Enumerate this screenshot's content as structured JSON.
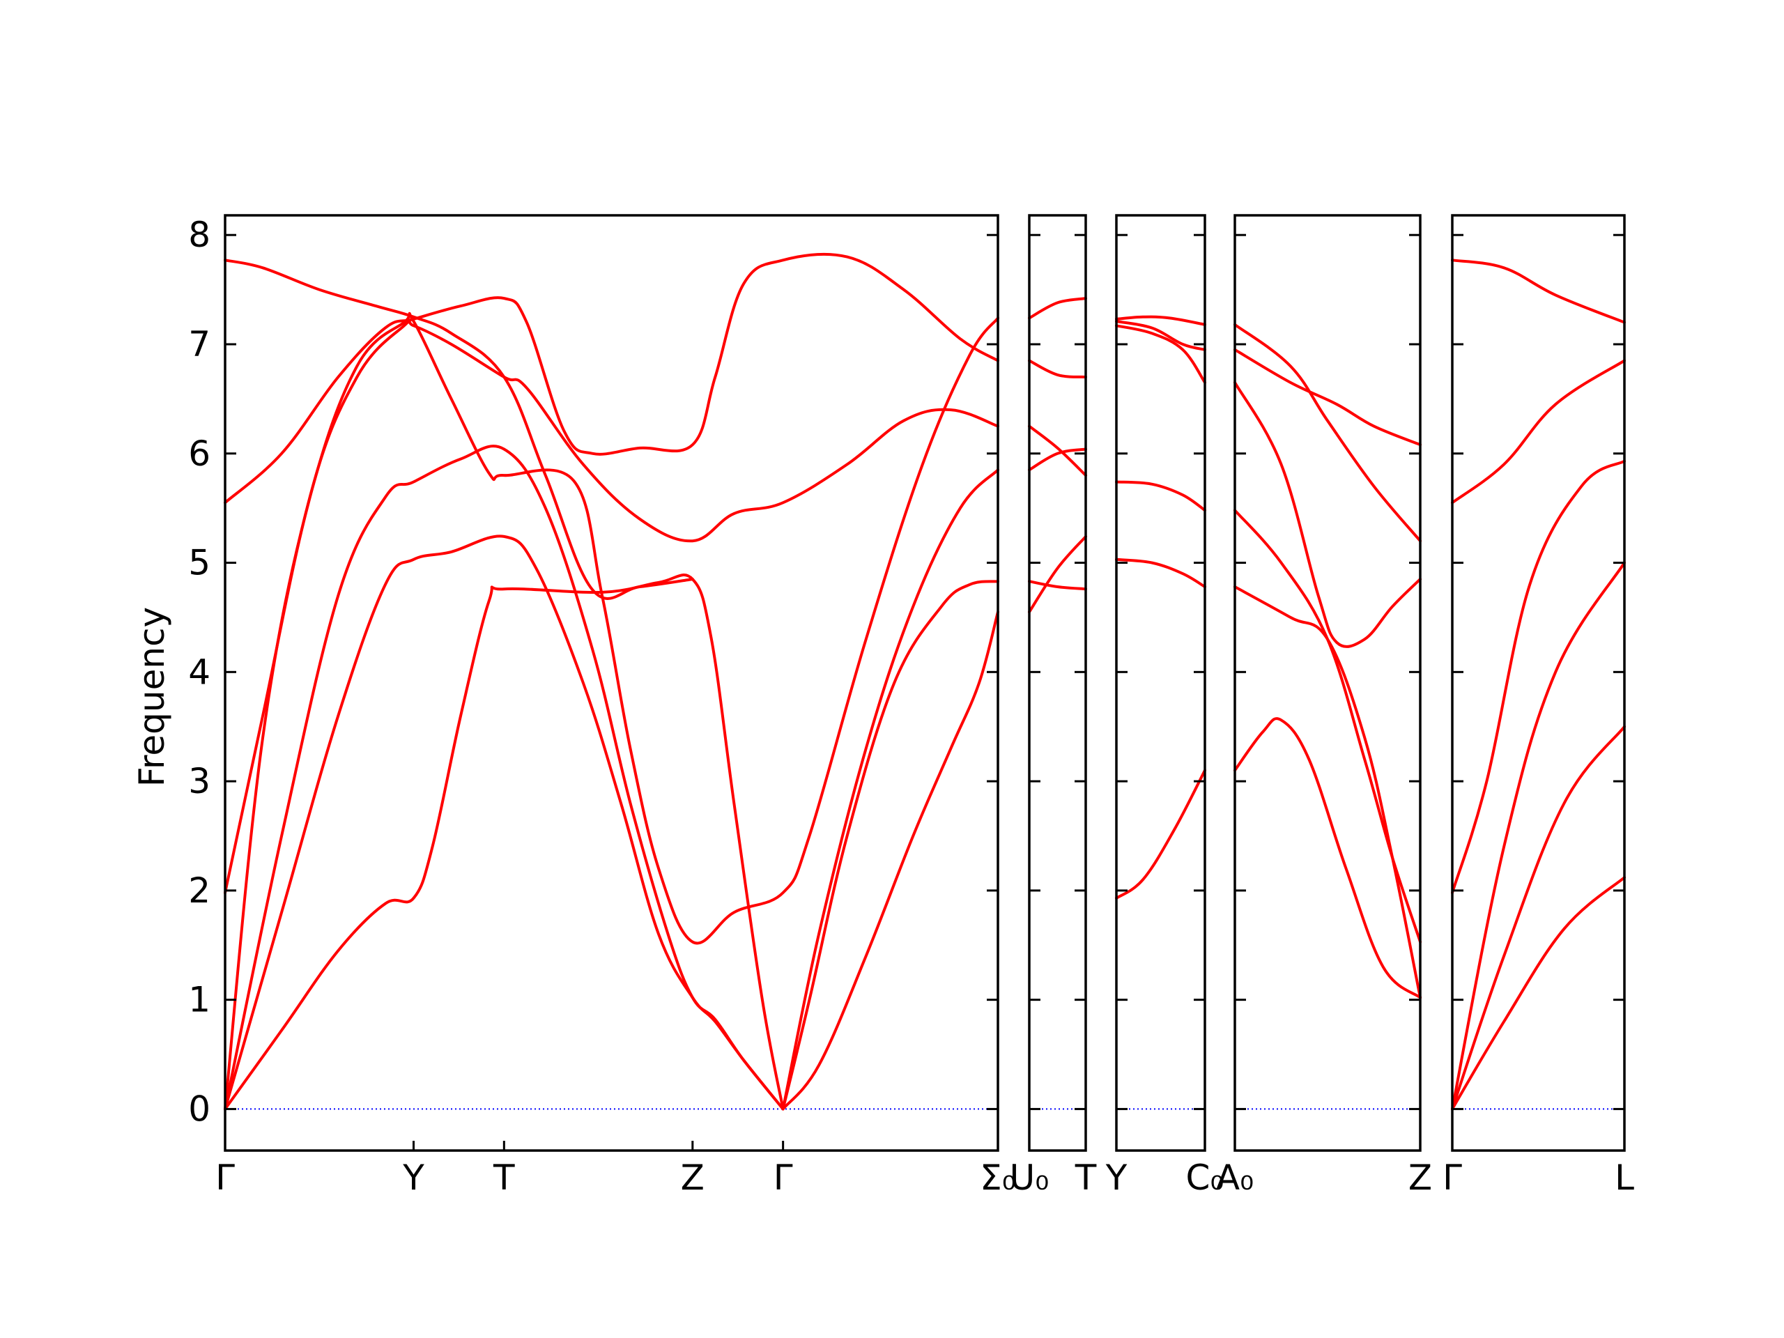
{
  "chart_data": {
    "type": "line",
    "ylabel": "Frequency",
    "ylim": [
      -0.38,
      8.18
    ],
    "yticks": [
      0,
      1,
      2,
      3,
      4,
      5,
      6,
      7,
      8
    ],
    "colors": {
      "bands": "#ff0000",
      "zero_line": "#0000ff",
      "axes": "#000000"
    },
    "grid": false,
    "panels": [
      {
        "name": "Γ-Y-T-Z-Γ-Σ0",
        "xlim": [
          0,
          4.1
        ],
        "xticks": [
          {
            "x": 0,
            "label": "Γ"
          },
          {
            "x": 1.0,
            "label": "Y"
          },
          {
            "x": 1.48,
            "label": "T"
          },
          {
            "x": 2.48,
            "label": "Z"
          },
          {
            "x": 2.96,
            "label": "Γ"
          },
          {
            "x": 4.1,
            "label": "Σ₀"
          }
        ],
        "bands": [
          [
            [
              0,
              0
            ],
            [
              0.3,
              0.72
            ],
            [
              0.6,
              1.45
            ],
            [
              0.85,
              1.88
            ],
            [
              1.0,
              1.93
            ],
            [
              1.1,
              2.4
            ],
            [
              1.25,
              3.6
            ],
            [
              1.4,
              4.65
            ],
            [
              1.48,
              4.76
            ],
            [
              2.0,
              4.73
            ],
            [
              2.3,
              4.82
            ],
            [
              2.48,
              4.85
            ],
            [
              2.58,
              4.3
            ],
            [
              2.7,
              2.8
            ],
            [
              2.85,
              1.0
            ],
            [
              2.96,
              0
            ]
          ],
          [
            [
              0,
              0
            ],
            [
              0.3,
              1.8
            ],
            [
              0.6,
              3.6
            ],
            [
              0.85,
              4.8
            ],
            [
              1.0,
              5.03
            ],
            [
              1.2,
              5.1
            ],
            [
              1.48,
              5.24
            ],
            [
              1.65,
              4.95
            ],
            [
              1.9,
              3.9
            ],
            [
              2.1,
              2.8
            ],
            [
              2.3,
              1.6
            ],
            [
              2.48,
              1.02
            ],
            [
              2.6,
              0.8
            ],
            [
              2.75,
              0.45
            ],
            [
              2.96,
              0
            ]
          ],
          [
            [
              0,
              0
            ],
            [
              0.3,
              2.5
            ],
            [
              0.6,
              4.7
            ],
            [
              0.85,
              5.6
            ],
            [
              1.0,
              5.74
            ],
            [
              1.25,
              5.95
            ],
            [
              1.48,
              6.04
            ],
            [
              1.7,
              5.5
            ],
            [
              1.95,
              4.2
            ],
            [
              2.15,
              2.8
            ],
            [
              2.35,
              1.6
            ],
            [
              2.48,
              1.02
            ],
            [
              2.6,
              0.82
            ],
            [
              2.75,
              0.45
            ],
            [
              2.96,
              0
            ]
          ],
          [
            [
              0,
              1.98
            ],
            [
              0.2,
              3.6
            ],
            [
              0.45,
              5.6
            ],
            [
              0.7,
              6.8
            ],
            [
              0.95,
              7.2
            ],
            [
              1.0,
              7.21
            ],
            [
              1.2,
              6.5
            ],
            [
              1.4,
              5.82
            ],
            [
              1.48,
              5.8
            ],
            [
              1.85,
              5.75
            ],
            [
              2.0,
              4.7
            ],
            [
              2.15,
              3.3
            ],
            [
              2.3,
              2.2
            ],
            [
              2.48,
              1.53
            ],
            [
              2.7,
              1.8
            ],
            [
              2.96,
              1.98
            ],
            [
              3.1,
              2.5
            ],
            [
              3.4,
              4.3
            ],
            [
              3.7,
              5.9
            ],
            [
              3.95,
              6.9
            ],
            [
              4.1,
              7.24
            ]
          ],
          [
            [
              0,
              0
            ],
            [
              0.2,
              3.4
            ],
            [
              0.45,
              5.6
            ],
            [
              0.7,
              6.7
            ],
            [
              0.95,
              7.17
            ],
            [
              1.0,
              7.17
            ],
            [
              1.2,
              7.0
            ],
            [
              1.48,
              6.7
            ],
            [
              1.6,
              6.6
            ],
            [
              1.9,
              5.9
            ],
            [
              2.2,
              5.4
            ],
            [
              2.48,
              5.2
            ],
            [
              2.7,
              5.45
            ],
            [
              2.96,
              5.55
            ],
            [
              3.3,
              5.9
            ],
            [
              3.6,
              6.3
            ],
            [
              3.85,
              6.4
            ],
            [
              4.1,
              6.25
            ]
          ],
          [
            [
              0,
              5.55
            ],
            [
              0.3,
              6.0
            ],
            [
              0.6,
              6.7
            ],
            [
              0.85,
              7.15
            ],
            [
              1.0,
              7.23
            ],
            [
              1.25,
              7.35
            ],
            [
              1.48,
              7.42
            ],
            [
              1.6,
              7.2
            ],
            [
              1.8,
              6.2
            ],
            [
              1.95,
              6.0
            ],
            [
              2.2,
              6.05
            ],
            [
              2.48,
              6.08
            ],
            [
              2.6,
              6.7
            ],
            [
              2.75,
              7.55
            ],
            [
              2.96,
              7.77
            ],
            [
              3.3,
              7.8
            ],
            [
              3.6,
              7.5
            ],
            [
              3.9,
              7.05
            ],
            [
              4.1,
              6.85
            ]
          ],
          [
            [
              0,
              7.77
            ],
            [
              0.2,
              7.7
            ],
            [
              0.5,
              7.5
            ],
            [
              0.8,
              7.35
            ],
            [
              1.0,
              7.25
            ],
            [
              1.2,
              7.1
            ],
            [
              1.48,
              6.7
            ],
            [
              1.7,
              5.8
            ],
            [
              1.95,
              4.75
            ],
            [
              2.2,
              4.78
            ],
            [
              2.48,
              4.85
            ]
          ],
          [
            [
              2.96,
              0
            ],
            [
              3.15,
              0.4
            ],
            [
              3.4,
              1.4
            ],
            [
              3.65,
              2.5
            ],
            [
              3.85,
              3.3
            ],
            [
              4.0,
              3.9
            ],
            [
              4.1,
              4.55
            ]
          ],
          [
            [
              2.96,
              0
            ],
            [
              3.1,
              1.0
            ],
            [
              3.3,
              2.5
            ],
            [
              3.55,
              3.9
            ],
            [
              3.8,
              4.6
            ],
            [
              3.95,
              4.8
            ],
            [
              4.1,
              4.83
            ]
          ],
          [
            [
              2.96,
              0
            ],
            [
              3.15,
              1.6
            ],
            [
              3.4,
              3.3
            ],
            [
              3.65,
              4.6
            ],
            [
              3.9,
              5.5
            ],
            [
              4.1,
              5.85
            ]
          ]
        ]
      },
      {
        "name": "U0-T",
        "xlim": [
          0,
          1
        ],
        "xticks": [
          {
            "x": 0,
            "label": "U₀"
          },
          {
            "x": 1,
            "label": "T"
          }
        ],
        "bands": [
          [
            [
              0,
              4.55
            ],
            [
              0.5,
              4.95
            ],
            [
              1,
              5.24
            ]
          ],
          [
            [
              0,
              4.83
            ],
            [
              0.5,
              4.78
            ],
            [
              1,
              4.76
            ]
          ],
          [
            [
              0,
              5.85
            ],
            [
              0.5,
              6.0
            ],
            [
              1,
              6.04
            ]
          ],
          [
            [
              0,
              6.25
            ],
            [
              0.5,
              6.05
            ],
            [
              1,
              5.8
            ]
          ],
          [
            [
              0,
              6.85
            ],
            [
              0.5,
              6.72
            ],
            [
              1,
              6.7
            ]
          ],
          [
            [
              0,
              7.24
            ],
            [
              0.5,
              7.38
            ],
            [
              1,
              7.42
            ]
          ]
        ]
      },
      {
        "name": "Y-C0",
        "xlim": [
          0,
          1
        ],
        "xticks": [
          {
            "x": 0,
            "label": "Y"
          },
          {
            "x": 1,
            "label": "C₀"
          }
        ],
        "bands": [
          [
            [
              0,
              1.93
            ],
            [
              0.3,
              2.1
            ],
            [
              0.65,
              2.55
            ],
            [
              1,
              3.1
            ]
          ],
          [
            [
              0,
              5.03
            ],
            [
              0.4,
              5.0
            ],
            [
              0.75,
              4.9
            ],
            [
              1,
              4.78
            ]
          ],
          [
            [
              0,
              5.74
            ],
            [
              0.4,
              5.72
            ],
            [
              0.75,
              5.62
            ],
            [
              1,
              5.48
            ]
          ],
          [
            [
              0,
              7.17
            ],
            [
              0.4,
              7.1
            ],
            [
              0.75,
              6.95
            ],
            [
              1,
              6.65
            ]
          ],
          [
            [
              0,
              7.21
            ],
            [
              0.4,
              7.15
            ],
            [
              0.75,
              7.0
            ],
            [
              1,
              6.95
            ]
          ],
          [
            [
              0,
              7.23
            ],
            [
              0.3,
              7.25
            ],
            [
              0.6,
              7.24
            ],
            [
              1,
              7.18
            ]
          ]
        ]
      },
      {
        "name": "A0-Z",
        "xlim": [
          0,
          1
        ],
        "xticks": [
          {
            "x": 0,
            "label": "A₀"
          },
          {
            "x": 1,
            "label": "Z"
          }
        ],
        "bands": [
          [
            [
              0,
              3.1
            ],
            [
              0.15,
              3.45
            ],
            [
              0.25,
              3.56
            ],
            [
              0.4,
              3.2
            ],
            [
              0.6,
              2.2
            ],
            [
              0.8,
              1.3
            ],
            [
              1,
              1.02
            ]
          ],
          [
            [
              0,
              4.78
            ],
            [
              0.3,
              4.5
            ],
            [
              0.5,
              4.3
            ],
            [
              0.7,
              3.4
            ],
            [
              0.85,
              2.3
            ],
            [
              1,
              1.02
            ]
          ],
          [
            [
              0,
              5.48
            ],
            [
              0.25,
              5.0
            ],
            [
              0.5,
              4.3
            ],
            [
              0.7,
              3.2
            ],
            [
              0.85,
              2.3
            ],
            [
              1,
              1.53
            ]
          ],
          [
            [
              0,
              6.65
            ],
            [
              0.25,
              5.9
            ],
            [
              0.45,
              4.7
            ],
            [
              0.55,
              4.27
            ],
            [
              0.7,
              4.3
            ],
            [
              0.85,
              4.6
            ],
            [
              1,
              4.85
            ]
          ],
          [
            [
              0,
              6.95
            ],
            [
              0.3,
              6.65
            ],
            [
              0.55,
              6.45
            ],
            [
              0.75,
              6.25
            ],
            [
              1,
              6.08
            ]
          ],
          [
            [
              0,
              7.18
            ],
            [
              0.3,
              6.8
            ],
            [
              0.5,
              6.3
            ],
            [
              0.75,
              5.7
            ],
            [
              1,
              5.2
            ]
          ]
        ]
      },
      {
        "name": "Γ-L",
        "xlim": [
          0,
          1
        ],
        "xticks": [
          {
            "x": 0,
            "label": "Γ"
          },
          {
            "x": 1,
            "label": "L"
          }
        ],
        "bands": [
          [
            [
              0,
              0
            ],
            [
              0.3,
              0.8
            ],
            [
              0.65,
              1.65
            ],
            [
              1,
              2.12
            ]
          ],
          [
            [
              0,
              0
            ],
            [
              0.3,
              1.4
            ],
            [
              0.65,
              2.8
            ],
            [
              1,
              3.5
            ]
          ],
          [
            [
              0,
              0
            ],
            [
              0.3,
              2.4
            ],
            [
              0.6,
              4.0
            ],
            [
              1,
              5.0
            ]
          ],
          [
            [
              0,
              1.98
            ],
            [
              0.2,
              3.0
            ],
            [
              0.45,
              4.8
            ],
            [
              0.75,
              5.7
            ],
            [
              1,
              5.93
            ]
          ],
          [
            [
              0,
              5.55
            ],
            [
              0.3,
              5.9
            ],
            [
              0.6,
              6.45
            ],
            [
              1,
              6.85
            ]
          ],
          [
            [
              0,
              7.77
            ],
            [
              0.3,
              7.7
            ],
            [
              0.6,
              7.45
            ],
            [
              1,
              7.2
            ]
          ]
        ]
      }
    ]
  }
}
